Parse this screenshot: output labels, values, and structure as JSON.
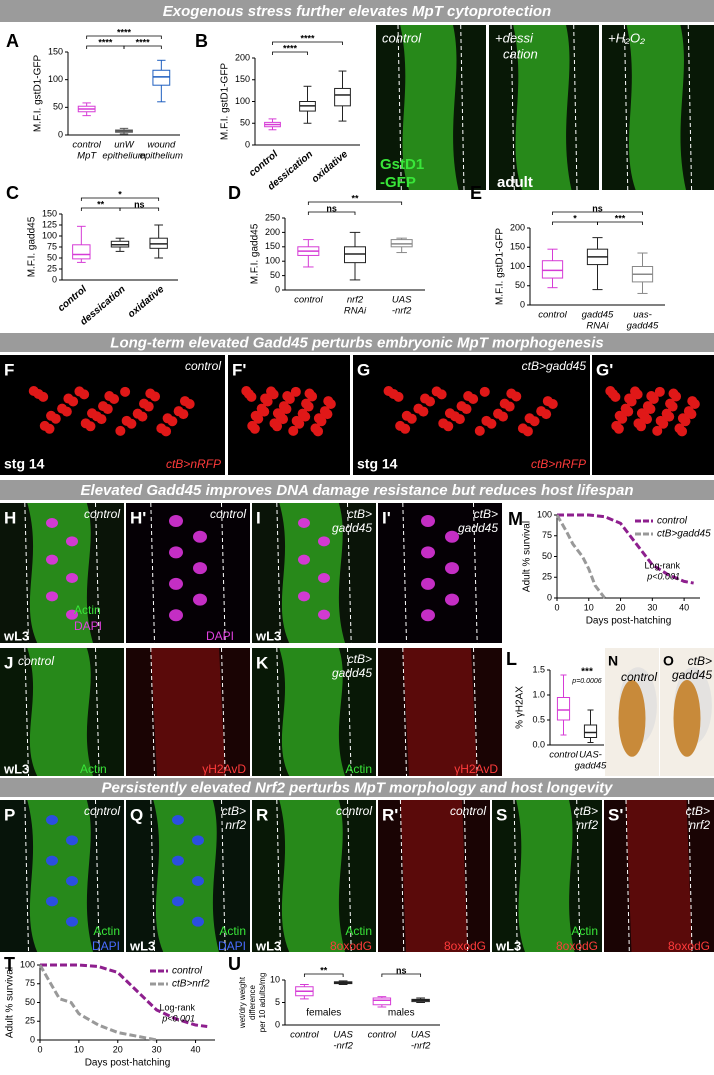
{
  "banners": [
    "Exogenous stress further elevates MpT cytoprotection",
    "Long-term elevated Gadd45 perturbs embryonic MpT morphogenesis",
    "Elevated Gadd45 improves DNA damage resistance but reduces host lifespan",
    "Persistently elevated Nrf2 perturbs MpT morphology and host longevity"
  ],
  "charts": [
    {
      "type": "box",
      "letter": "A",
      "ylabel": "M.F.I. gstD1-GFP",
      "ylim": [
        0,
        150
      ],
      "yticks": [
        0,
        50,
        100,
        150
      ],
      "categories": [
        [
          "control",
          "MpT"
        ],
        [
          "unW",
          "epithelium"
        ],
        [
          "wound",
          "epithelium"
        ]
      ],
      "colors": [
        "#d63bd6",
        "#555555",
        "#1f5fc0"
      ],
      "boxes": [
        {
          "min": 35,
          "q1": 42,
          "median": 47,
          "q3": 52,
          "max": 58
        },
        {
          "min": 2,
          "q1": 5,
          "median": 7,
          "q3": 9,
          "max": 12
        },
        {
          "min": 60,
          "q1": 90,
          "median": 105,
          "q3": 117,
          "max": 135
        }
      ],
      "brackets": [
        "****",
        "****",
        "****"
      ]
    },
    {
      "type": "box",
      "letter": "B",
      "ylabel": "M.F.I. gstD1-GFP",
      "ylim": [
        0,
        200
      ],
      "yticks": [
        0,
        50,
        100,
        150,
        200
      ],
      "categories": [
        [
          "control"
        ],
        [
          "dessication"
        ],
        [
          "oxidative"
        ]
      ],
      "colors": [
        "#d63bd6",
        "#222222",
        "#222222"
      ],
      "boxes": [
        {
          "min": 35,
          "q1": 42,
          "median": 47,
          "q3": 52,
          "max": 60
        },
        {
          "min": 50,
          "q1": 78,
          "median": 90,
          "q3": 100,
          "max": 135
        },
        {
          "min": 55,
          "q1": 90,
          "median": 115,
          "q3": 130,
          "max": 170
        }
      ],
      "brackets": [
        "****",
        "****"
      ]
    },
    {
      "type": "box",
      "letter": "C",
      "ylabel": "M.F.I. gadd45",
      "ylim": [
        0,
        150
      ],
      "yticks": [
        0,
        25,
        50,
        75,
        100,
        125,
        150
      ],
      "categories": [
        [
          "control"
        ],
        [
          "dessication"
        ],
        [
          "oxidative"
        ]
      ],
      "colors": [
        "#d63bd6",
        "#222222",
        "#222222"
      ],
      "boxes": [
        {
          "min": 40,
          "q1": 48,
          "median": 58,
          "q3": 80,
          "max": 122
        },
        {
          "min": 65,
          "q1": 75,
          "median": 80,
          "q3": 88,
          "max": 95
        },
        {
          "min": 50,
          "q1": 72,
          "median": 82,
          "q3": 95,
          "max": 125
        }
      ],
      "brackets": [
        "**",
        "*",
        "ns"
      ]
    },
    {
      "type": "box",
      "letter": "D",
      "ylabel": "M.F.I. gadd45",
      "ylim": [
        0,
        250
      ],
      "yticks": [
        0,
        50,
        100,
        150,
        200,
        250
      ],
      "categories": [
        [
          "control"
        ],
        [
          "nrf2",
          "RNAi"
        ],
        [
          "UAS",
          "-nrf2"
        ]
      ],
      "colors": [
        "#d63bd6",
        "#222222",
        "#888888"
      ],
      "boxes": [
        {
          "min": 80,
          "q1": 120,
          "median": 135,
          "q3": 150,
          "max": 175
        },
        {
          "min": 35,
          "q1": 95,
          "median": 125,
          "q3": 150,
          "max": 200
        },
        {
          "min": 130,
          "q1": 150,
          "median": 160,
          "q3": 175,
          "max": 180
        }
      ],
      "brackets": [
        "ns",
        "**"
      ]
    },
    {
      "type": "box",
      "letter": "E",
      "ylabel": "M.F.I. gstD1-GFP",
      "ylim": [
        0,
        200
      ],
      "yticks": [
        0,
        50,
        100,
        150,
        200
      ],
      "categories": [
        [
          "control"
        ],
        [
          "gadd45",
          "RNAi"
        ],
        [
          "uas-",
          "gadd45"
        ]
      ],
      "colors": [
        "#d63bd6",
        "#222222",
        "#888888"
      ],
      "boxes": [
        {
          "min": 45,
          "q1": 70,
          "median": 90,
          "q3": 115,
          "max": 145
        },
        {
          "min": 40,
          "q1": 105,
          "median": 125,
          "q3": 145,
          "max": 175
        },
        {
          "min": 30,
          "q1": 60,
          "median": 80,
          "q3": 100,
          "max": 135
        }
      ],
      "brackets": [
        "ns",
        "*",
        "***"
      ]
    },
    {
      "type": "box",
      "letter": "L",
      "ylabel": "% γH2AX",
      "ylim": [
        0,
        1.5
      ],
      "yticks": [
        {
          "value": 0,
          "label": "0.0"
        },
        0.5,
        {
          "value": 1,
          "label": "1.0"
        },
        1.5
      ],
      "categories": [
        [
          "control"
        ],
        [
          "UAS-",
          "gadd45"
        ]
      ],
      "colors": [
        "#d63bd6",
        "#222222"
      ],
      "boxes": [
        {
          "min": 0.2,
          "q1": 0.5,
          "median": 0.7,
          "q3": 0.95,
          "max": 1.4
        },
        {
          "min": 0.05,
          "q1": 0.15,
          "median": 0.25,
          "q3": 0.4,
          "max": 0.7
        }
      ],
      "annotations": [
        "***",
        "p=0.0006"
      ]
    },
    {
      "type": "line",
      "letter": "M",
      "ylabel": "Adult % survival",
      "xlabel": "Days post-hatching",
      "xlim": [
        0,
        45
      ],
      "xticks": [
        0,
        10,
        20,
        30,
        40
      ],
      "ylim": [
        0,
        100
      ],
      "yticks": [
        0,
        25,
        50,
        75,
        100
      ],
      "series": [
        {
          "name": "control",
          "color": "#8e1f8e",
          "x": [
            0,
            5,
            10,
            15,
            20,
            22,
            25,
            28,
            30,
            35,
            40,
            43
          ],
          "values": [
            100,
            100,
            100,
            98,
            90,
            80,
            65,
            50,
            40,
            28,
            20,
            18
          ]
        },
        {
          "name": "ctB>gadd45",
          "color": "#999999",
          "x": [
            0,
            3,
            5,
            8,
            10,
            12,
            15
          ],
          "values": [
            100,
            80,
            65,
            50,
            35,
            15,
            0
          ]
        }
      ],
      "annotations": [
        "Log-rank",
        "p<0.001"
      ]
    },
    {
      "type": "line",
      "letter": "T",
      "ylabel": "Adult % survival",
      "xlabel": "Days post-hatching",
      "xlim": [
        0,
        45
      ],
      "xticks": [
        0,
        10,
        20,
        30,
        40
      ],
      "ylim": [
        0,
        100
      ],
      "yticks": [
        0,
        25,
        50,
        75,
        100
      ],
      "series": [
        {
          "name": "control",
          "color": "#8e1f8e",
          "x": [
            0,
            5,
            10,
            15,
            20,
            22,
            25,
            28,
            30,
            35,
            40,
            43
          ],
          "values": [
            100,
            100,
            100,
            98,
            90,
            80,
            65,
            50,
            40,
            28,
            20,
            18
          ]
        },
        {
          "name": "ctB>nrf2",
          "color": "#999999",
          "x": [
            0,
            5,
            8,
            10,
            15,
            20,
            25,
            30
          ],
          "values": [
            100,
            55,
            50,
            35,
            20,
            10,
            5,
            0
          ]
        }
      ],
      "annotations": [
        "Log-rank",
        "p<0.001"
      ]
    },
    {
      "type": "box",
      "letter": "U",
      "ylabel": [
        "wet/dry weight",
        "difference",
        "per 10 adults/mg"
      ],
      "ylim": [
        0,
        10
      ],
      "yticks": [
        0,
        5,
        10
      ],
      "categories": [
        [
          "control"
        ],
        [
          "UAS",
          "-nrf2"
        ],
        [
          "control"
        ],
        [
          "UAS",
          "-nrf2"
        ]
      ],
      "groups": [
        "females",
        "males"
      ],
      "colors": [
        "#d63bd6",
        "#222222",
        "#d63bd6",
        "#222222"
      ],
      "boxes": [
        {
          "min": 5.8,
          "q1": 6.5,
          "median": 7.5,
          "q3": 8.5,
          "max": 9
        },
        {
          "min": 9,
          "q1": 9.2,
          "median": 9.4,
          "q3": 9.6,
          "max": 9.8
        },
        {
          "min": 4,
          "q1": 4.5,
          "median": 5.5,
          "q3": 6,
          "max": 6.3
        },
        {
          "min": 5,
          "q1": 5.2,
          "median": 5.5,
          "q3": 5.7,
          "max": 6
        }
      ],
      "brackets": [
        "**",
        "ns"
      ]
    }
  ],
  "images": [
    {
      "labels": [
        "control",
        "GstD1",
        "-GFP"
      ]
    },
    {
      "labels": [
        "+dessi",
        "cation",
        "adult"
      ]
    },
    {
      "labels": [
        "+H₂O₂"
      ]
    },
    {
      "labels": [
        "F",
        "control",
        "stg 14",
        "ctB>nRFP"
      ]
    },
    {
      "labels": [
        "F'"
      ]
    },
    {
      "labels": [
        "G",
        "ctB>gadd45",
        "stg 14",
        "ctB>nRFP"
      ]
    },
    {
      "labels": [
        "G'"
      ]
    },
    {
      "labels": [
        "H",
        "control",
        "Actin",
        "DAPI",
        "wL3"
      ]
    },
    {
      "labels": [
        "H'",
        "control",
        "DAPI"
      ]
    },
    {
      "labels": [
        "I",
        "ctB>",
        "gadd45",
        "wL3"
      ]
    },
    {
      "labels": [
        "I'",
        "ctB>",
        "gadd45"
      ]
    },
    {
      "labels": [
        "J",
        "control",
        "wL3",
        "Actin"
      ]
    },
    {
      "labels": [
        "γH2AvD"
      ]
    },
    {
      "labels": [
        "K",
        "ctB>",
        "gadd45",
        "Actin"
      ]
    },
    {
      "labels": [
        "γH2AvD"
      ]
    },
    {
      "labels": [
        "N",
        "control"
      ]
    },
    {
      "labels": [
        "O",
        "ctB>",
        "gadd45"
      ]
    },
    {
      "labels": [
        "P",
        "control",
        "Actin",
        "DAPI"
      ]
    },
    {
      "labels": [
        "Q",
        "ctB>",
        "nrf2",
        "Actin",
        "wL3",
        "DAPI"
      ]
    },
    {
      "labels": [
        "R",
        "control",
        "Actin",
        "wL3",
        "8oxodG"
      ]
    },
    {
      "labels": [
        "R'",
        "control",
        "8oxodG"
      ]
    },
    {
      "labels": [
        "S",
        "ctB>",
        "nrf2",
        "Actin",
        "wL3",
        "8oxodG"
      ]
    },
    {
      "labels": [
        "S'",
        "ctB>",
        "nrf2",
        "8oxodG"
      ]
    }
  ]
}
